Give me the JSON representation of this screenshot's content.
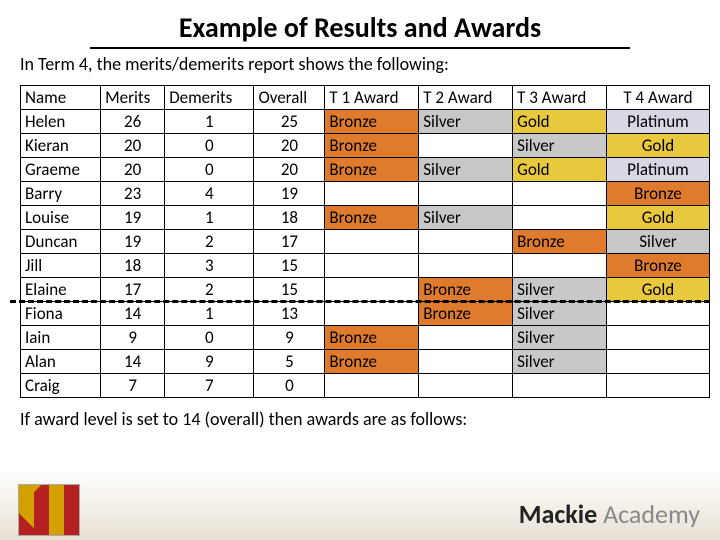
{
  "title": "Example of Results and Awards",
  "intro": "In Term 4, the merits/demerits report shows the following:",
  "outro": "If award level is set to 14 (overall) then awards are as follows:",
  "footer": {
    "bold": "Mackie",
    "light": " Academy"
  },
  "dashAfterRow": 8,
  "columns": [
    {
      "key": "name",
      "label": "Name",
      "cls": "col-name",
      "align": "left"
    },
    {
      "key": "merits",
      "label": "Merits",
      "cls": "col-merits",
      "align": "center"
    },
    {
      "key": "demerits",
      "label": "Demerits",
      "cls": "col-demerit",
      "align": "center"
    },
    {
      "key": "overall",
      "label": "Overall",
      "cls": "col-overall",
      "align": "center"
    },
    {
      "key": "t1",
      "label": "T 1 Award",
      "cls": "col-t1",
      "align": "left"
    },
    {
      "key": "t2",
      "label": "T 2 Award",
      "cls": "col-t2",
      "align": "left"
    },
    {
      "key": "t3",
      "label": "T 3 Award",
      "cls": "col-t3",
      "align": "left"
    },
    {
      "key": "t4",
      "label": "T 4 Award",
      "cls": "col-t4",
      "align": "center"
    }
  ],
  "awardColors": {
    "Bronze": "#e07b2e",
    "Silver": "#c8c8c8",
    "Gold": "#e8c83c",
    "Platinum": "#d8d8e4",
    "": "#ffffff"
  },
  "rows": [
    {
      "name": "Helen",
      "merits": 26,
      "demerits": 1,
      "overall": 25,
      "t1": "Bronze",
      "t2": "Silver",
      "t3": "Gold",
      "t4": "Platinum"
    },
    {
      "name": "Kieran",
      "merits": 20,
      "demerits": 0,
      "overall": 20,
      "t1": "Bronze",
      "t2": "",
      "t3": "Silver",
      "t4": "Gold"
    },
    {
      "name": "Graeme",
      "merits": 20,
      "demerits": 0,
      "overall": 20,
      "t1": "Bronze",
      "t2": "Silver",
      "t3": "Gold",
      "t4": "Platinum"
    },
    {
      "name": "Barry",
      "merits": 23,
      "demerits": 4,
      "overall": 19,
      "t1": "",
      "t2": "",
      "t3": "",
      "t4": "Bronze"
    },
    {
      "name": "Louise",
      "merits": 19,
      "demerits": 1,
      "overall": 18,
      "t1": "Bronze",
      "t2": "Silver",
      "t3": "",
      "t4": "Gold"
    },
    {
      "name": "Duncan",
      "merits": 19,
      "demerits": 2,
      "overall": 17,
      "t1": "",
      "t2": "",
      "t3": "Bronze",
      "t4": "Silver"
    },
    {
      "name": "Jill",
      "merits": 18,
      "demerits": 3,
      "overall": 15,
      "t1": "",
      "t2": "",
      "t3": "",
      "t4": "Bronze"
    },
    {
      "name": "Elaine",
      "merits": 17,
      "demerits": 2,
      "overall": 15,
      "t1": "",
      "t2": "Bronze",
      "t3": "Silver",
      "t4": "Gold"
    },
    {
      "name": "Fiona",
      "merits": 14,
      "demerits": 1,
      "overall": 13,
      "t1": "",
      "t2": "Bronze",
      "t3": "Silver",
      "t4": ""
    },
    {
      "name": "Iain",
      "merits": 9,
      "demerits": 0,
      "overall": 9,
      "t1": "Bronze",
      "t2": "",
      "t3": "Silver",
      "t4": ""
    },
    {
      "name": "Alan",
      "merits": 14,
      "demerits": 9,
      "overall": 5,
      "t1": "Bronze",
      "t2": "",
      "t3": "Silver",
      "t4": ""
    },
    {
      "name": "Craig",
      "merits": 7,
      "demerits": 7,
      "overall": 0,
      "t1": "",
      "t2": "",
      "t3": "",
      "t4": ""
    }
  ]
}
